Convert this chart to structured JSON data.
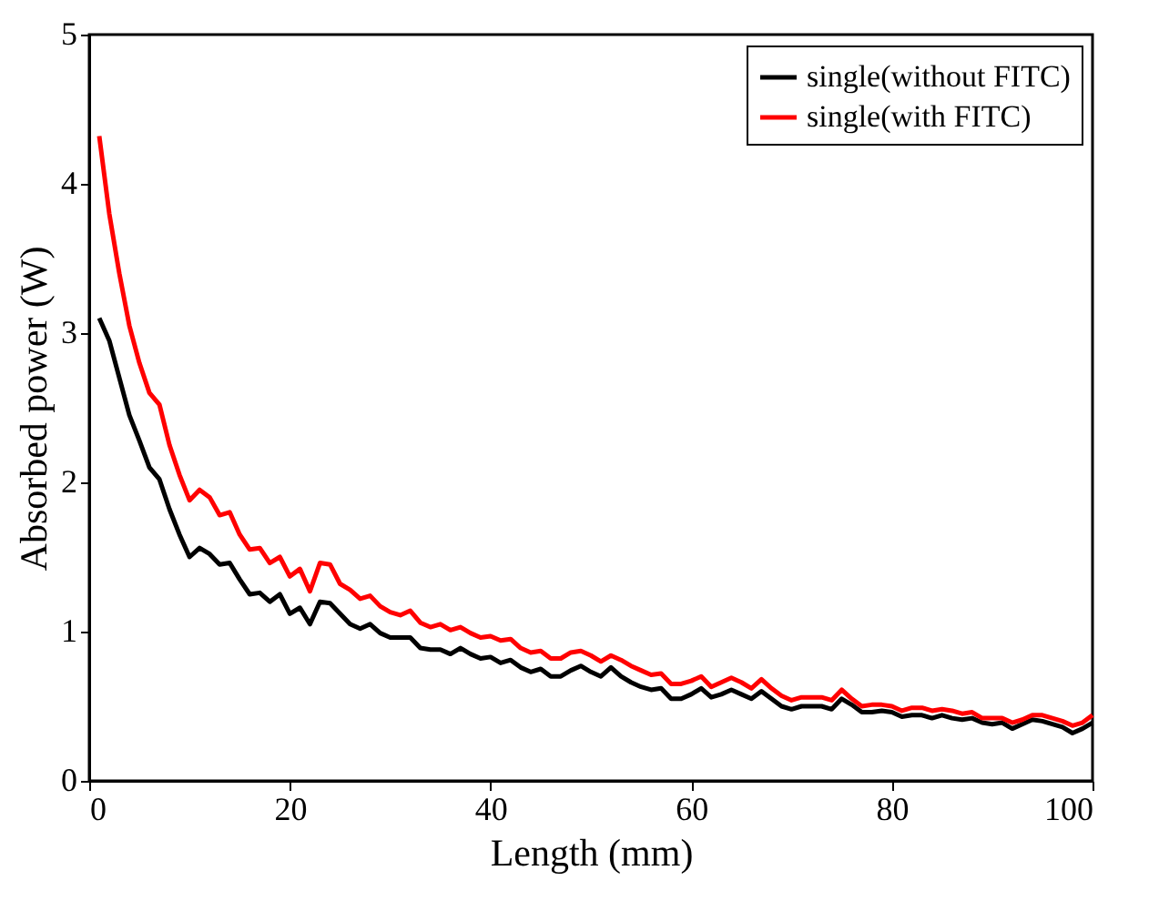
{
  "chart_data": {
    "type": "line",
    "xlabel": "Length (mm)",
    "ylabel": "Absorbed power (W)",
    "x": [
      1,
      2,
      3,
      4,
      5,
      6,
      7,
      8,
      9,
      10,
      11,
      12,
      13,
      14,
      15,
      16,
      17,
      18,
      19,
      20,
      21,
      22,
      23,
      24,
      25,
      26,
      27,
      28,
      29,
      30,
      31,
      32,
      33,
      34,
      35,
      36,
      37,
      38,
      39,
      40,
      41,
      42,
      43,
      44,
      45,
      46,
      47,
      48,
      49,
      50,
      51,
      52,
      53,
      54,
      55,
      56,
      57,
      58,
      59,
      60,
      61,
      62,
      63,
      64,
      65,
      66,
      67,
      68,
      69,
      70,
      71,
      72,
      73,
      74,
      75,
      76,
      77,
      78,
      79,
      80,
      81,
      82,
      83,
      84,
      85,
      86,
      87,
      88,
      89,
      90,
      91,
      92,
      93,
      94,
      95,
      96,
      97,
      98,
      99,
      100
    ],
    "series": [
      {
        "name": "single(without FITC)",
        "color": "#000000",
        "values": [
          3.1,
          2.95,
          2.7,
          2.45,
          2.28,
          2.1,
          2.02,
          1.82,
          1.65,
          1.5,
          1.56,
          1.52,
          1.45,
          1.46,
          1.35,
          1.25,
          1.26,
          1.2,
          1.25,
          1.12,
          1.16,
          1.05,
          1.2,
          1.19,
          1.12,
          1.05,
          1.02,
          1.05,
          0.99,
          0.96,
          0.96,
          0.96,
          0.89,
          0.88,
          0.88,
          0.85,
          0.89,
          0.85,
          0.82,
          0.83,
          0.79,
          0.81,
          0.76,
          0.73,
          0.75,
          0.7,
          0.7,
          0.74,
          0.77,
          0.73,
          0.7,
          0.76,
          0.7,
          0.66,
          0.63,
          0.61,
          0.62,
          0.55,
          0.55,
          0.58,
          0.62,
          0.56,
          0.58,
          0.61,
          0.58,
          0.55,
          0.6,
          0.55,
          0.5,
          0.48,
          0.5,
          0.5,
          0.5,
          0.48,
          0.55,
          0.51,
          0.46,
          0.46,
          0.47,
          0.46,
          0.43,
          0.44,
          0.44,
          0.42,
          0.44,
          0.42,
          0.41,
          0.42,
          0.39,
          0.38,
          0.39,
          0.35,
          0.38,
          0.41,
          0.4,
          0.38,
          0.36,
          0.32,
          0.35,
          0.39
        ]
      },
      {
        "name": "single(with FITC)",
        "color": "#ff0000",
        "values": [
          4.32,
          3.8,
          3.4,
          3.05,
          2.8,
          2.6,
          2.52,
          2.25,
          2.05,
          1.88,
          1.95,
          1.9,
          1.78,
          1.8,
          1.65,
          1.55,
          1.56,
          1.46,
          1.5,
          1.37,
          1.42,
          1.27,
          1.46,
          1.45,
          1.32,
          1.28,
          1.22,
          1.24,
          1.17,
          1.13,
          1.11,
          1.14,
          1.06,
          1.03,
          1.05,
          1.01,
          1.03,
          0.99,
          0.96,
          0.97,
          0.94,
          0.95,
          0.89,
          0.86,
          0.87,
          0.82,
          0.82,
          0.86,
          0.87,
          0.84,
          0.8,
          0.84,
          0.81,
          0.77,
          0.74,
          0.71,
          0.72,
          0.65,
          0.65,
          0.67,
          0.7,
          0.63,
          0.66,
          0.69,
          0.66,
          0.62,
          0.68,
          0.62,
          0.57,
          0.54,
          0.56,
          0.56,
          0.56,
          0.54,
          0.61,
          0.55,
          0.5,
          0.51,
          0.51,
          0.5,
          0.47,
          0.49,
          0.49,
          0.47,
          0.48,
          0.47,
          0.45,
          0.46,
          0.42,
          0.42,
          0.42,
          0.39,
          0.41,
          0.44,
          0.44,
          0.42,
          0.4,
          0.37,
          0.39,
          0.44
        ]
      }
    ],
    "xlim": [
      0,
      100
    ],
    "xticks": [
      0,
      20,
      40,
      60,
      80,
      100
    ],
    "ylim": [
      0,
      5
    ],
    "yticks": [
      0,
      1,
      2,
      3,
      4,
      5
    ],
    "grid": false,
    "legend": "top right",
    "line_style": "solid",
    "marker": "none"
  }
}
